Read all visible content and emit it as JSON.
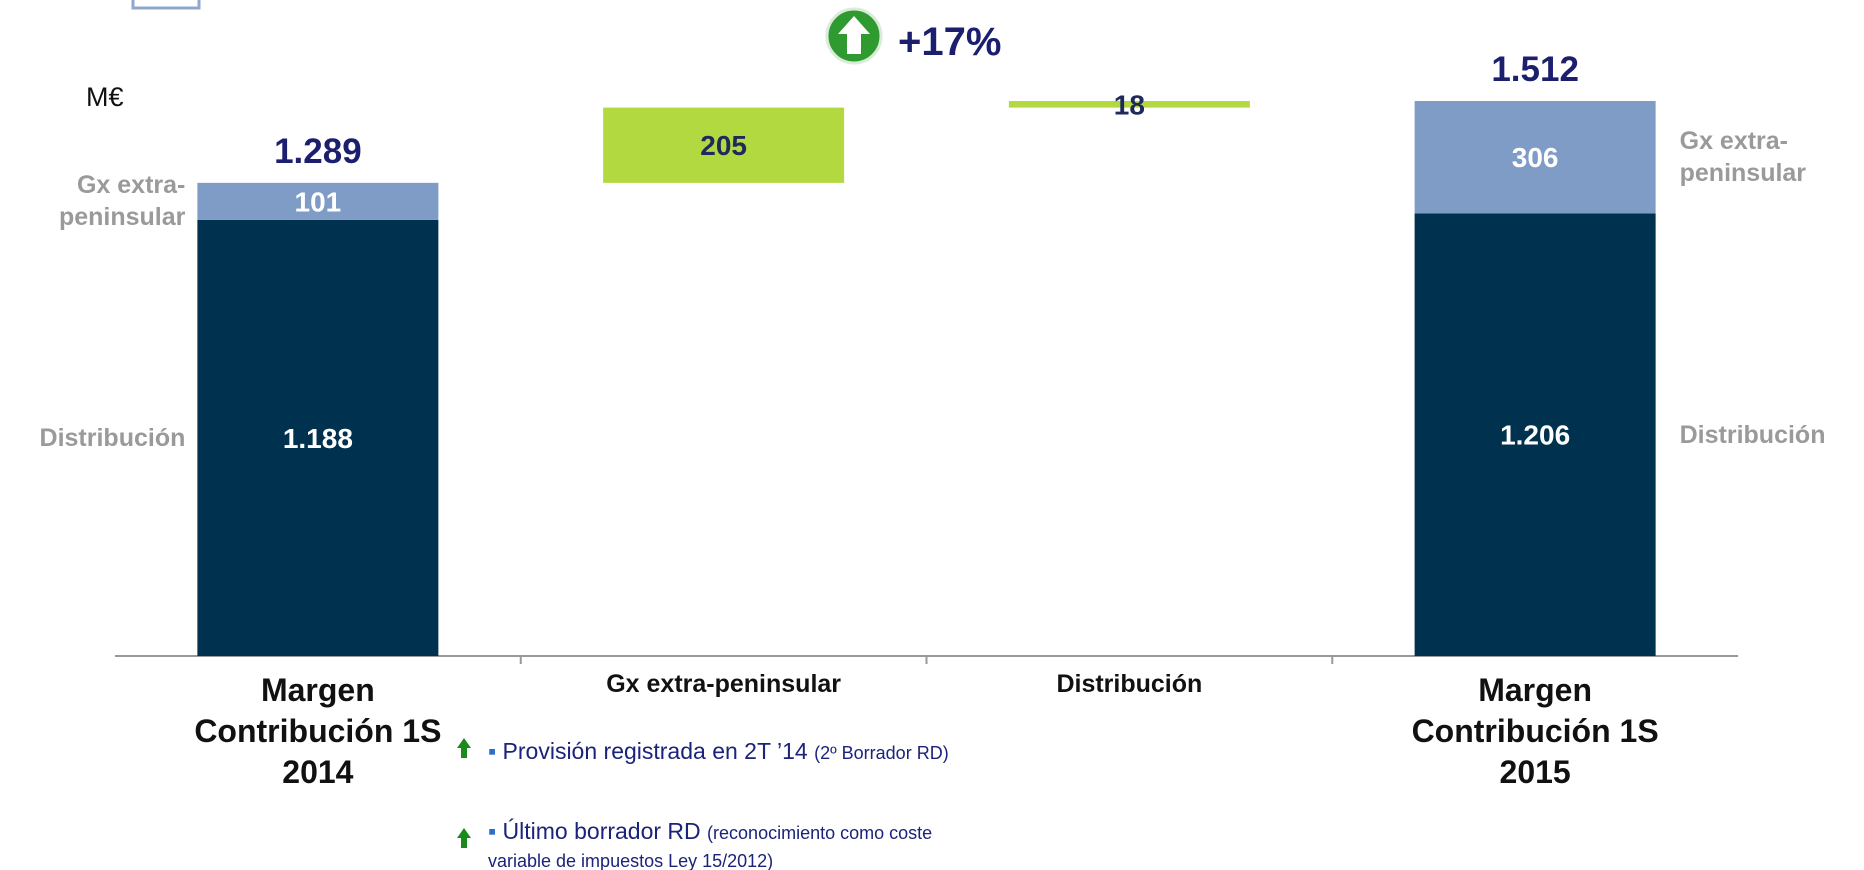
{
  "chart_data": {
    "type": "waterfall",
    "unit": "M€",
    "annotation": "+17%",
    "categories": [
      "Margen Contribución 1S 2014",
      "Gx extra-peninsular",
      "Distribución",
      "Margen Contribución 1S 2015"
    ],
    "series": [
      {
        "name": "Distribución",
        "color": "#00314f",
        "values": [
          1188,
          null,
          null,
          1206
        ],
        "value_labels": [
          "1.188",
          null,
          null,
          "1.206"
        ]
      },
      {
        "name": "Gx extra-peninsular",
        "color": "#7f9cc6",
        "values": [
          101,
          null,
          null,
          306
        ]
      }
    ],
    "steps": {
      "color": "#b2d940",
      "values": [
        null,
        205,
        18,
        null
      ]
    },
    "totals": {
      "values": [
        1289,
        null,
        null,
        1512
      ],
      "value_labels": [
        "1.289",
        null,
        null,
        "1.512"
      ]
    },
    "notes": [
      {
        "text": "Provisión registrada en 2T ’14",
        "detail": "(2º Borrador RD)"
      },
      {
        "text": "Último borrador RD",
        "detail": "(reconocimiento como coste variable de impuestos Ley 15/2012)"
      }
    ]
  }
}
